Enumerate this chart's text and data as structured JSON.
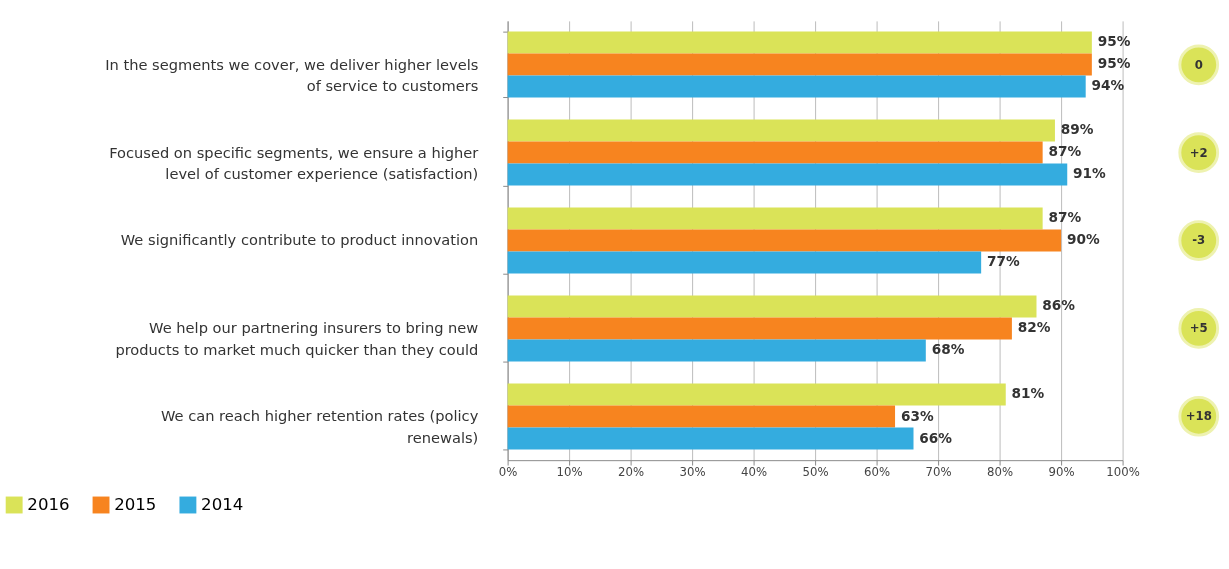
{
  "chart_data": {
    "type": "bar",
    "orientation": "horizontal",
    "categories": [
      "In the segments we cover, we deliver higher levels of service to customers",
      "Focused on specific segments, we ensure a higher level of customer experience (satisfaction)",
      "We significantly contribute to product innovation",
      "We help our partnering insurers to bring new products to market much quicker than they could",
      "We can reach higher retention rates (policy renewals)"
    ],
    "series": [
      {
        "name": "2016",
        "color": "#dae358",
        "values": [
          95,
          89,
          87,
          86,
          81
        ],
        "value_labels": [
          "95%",
          "89%",
          "87%",
          "86%",
          "81%"
        ]
      },
      {
        "name": "2015",
        "color": "#f7841f",
        "values": [
          95,
          87,
          90,
          82,
          63
        ],
        "value_labels": [
          "95%",
          "87%",
          "90%",
          "82%",
          "63%"
        ]
      },
      {
        "name": "2014",
        "color": "#34acdf",
        "values": [
          94,
          91,
          77,
          68,
          66
        ],
        "value_labels": [
          "94%",
          "91%",
          "77%",
          "68%",
          "66%"
        ]
      }
    ],
    "xlim": [
      0,
      100
    ],
    "xticks": [
      {
        "value": 0,
        "label": "0%"
      },
      {
        "value": 10,
        "label": "10%"
      },
      {
        "value": 20,
        "label": "20%"
      },
      {
        "value": 30,
        "label": "30%"
      },
      {
        "value": 40,
        "label": "40%"
      },
      {
        "value": 50,
        "label": "50%"
      },
      {
        "value": 60,
        "label": "60%"
      },
      {
        "value": 70,
        "label": "70%"
      },
      {
        "value": 80,
        "label": "80%"
      },
      {
        "value": 90,
        "label": "90%"
      },
      {
        "value": 100,
        "label": "100%"
      }
    ],
    "annotations": [
      "0",
      "+2",
      "-3",
      "+5",
      "+18"
    ],
    "grid": "x",
    "legend": "bottom"
  }
}
